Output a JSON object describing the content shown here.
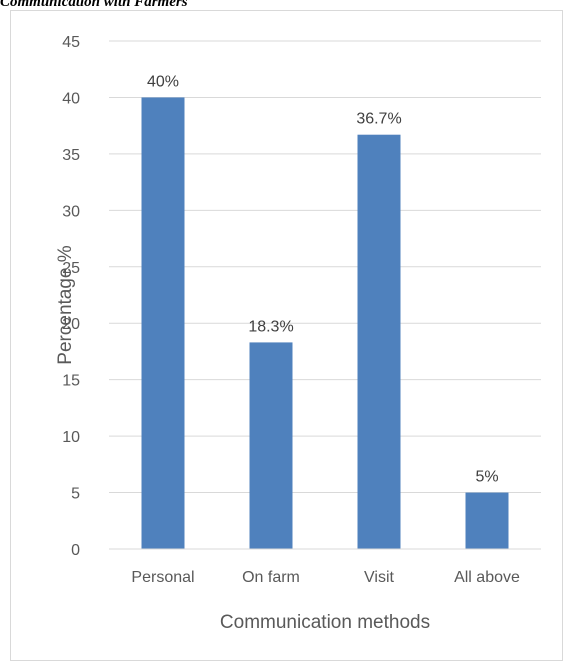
{
  "caption": "Communication with Farmers",
  "chart_data": {
    "type": "bar",
    "categories": [
      "Personal",
      "On farm",
      "Visit",
      "All above"
    ],
    "values": [
      40,
      18.3,
      36.7,
      5
    ],
    "data_labels": [
      "40%",
      "18.3%",
      "36.7%",
      "5%"
    ],
    "title": "",
    "xlabel": "Communication methods",
    "ylabel": "Percentage %",
    "ylim": [
      0,
      45
    ],
    "yticks": [
      0,
      5,
      10,
      15,
      20,
      25,
      30,
      35,
      40,
      45
    ],
    "grid": true,
    "legend": "none",
    "colors": {
      "bar": "#4f81bd",
      "grid": "#d9d9d9",
      "text": "#595959",
      "label": "#404040"
    }
  }
}
